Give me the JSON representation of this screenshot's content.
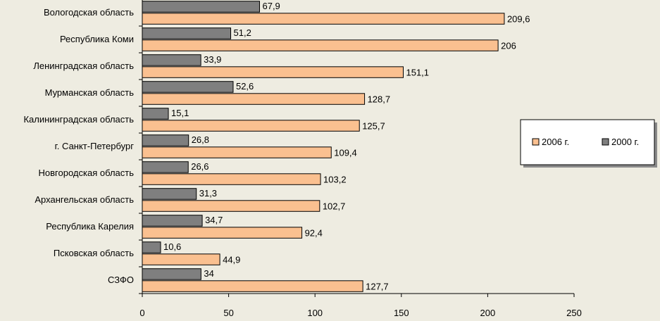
{
  "chart_data": {
    "type": "bar",
    "orientation": "horizontal",
    "categories": [
      "Вологодская область",
      "Республика Коми",
      "Ленинградская область",
      "Мурманская область",
      "Калининградская область",
      "г. Санкт-Петербург",
      "Новгородская область",
      "Архангельская область",
      "Республика Карелия",
      "Псковская область",
      "СЗФО"
    ],
    "series": [
      {
        "name": "2000 г.",
        "color": "#7f7f7f",
        "values": [
          67.9,
          51.2,
          33.9,
          52.6,
          15.1,
          26.8,
          26.6,
          31.3,
          34.7,
          10.6,
          34
        ],
        "value_labels": [
          "67,9",
          "51,2",
          "33,9",
          "52,6",
          "15,1",
          "26,8",
          "26,6",
          "31,3",
          "34,7",
          "10,6",
          "34"
        ]
      },
      {
        "name": "2006 г.",
        "color": "#fac090",
        "values": [
          209.6,
          206,
          151.1,
          128.7,
          125.7,
          109.4,
          103.2,
          102.7,
          92.4,
          44.9,
          127.7
        ],
        "value_labels": [
          "209,6",
          "206",
          "151,1",
          "128,7",
          "125,7",
          "109,4",
          "103,2",
          "102,7",
          "92,4",
          "44,9",
          "127,7"
        ]
      }
    ],
    "xlim": [
      0,
      250
    ],
    "x_ticks": [
      0,
      50,
      100,
      150,
      200,
      250
    ],
    "x_tick_labels": [
      "0",
      "50",
      "100",
      "150",
      "200",
      "250"
    ],
    "title": "",
    "xlabel": "",
    "ylabel": "",
    "grid": false,
    "legend": {
      "placement": "right",
      "entries": [
        "2006 г.",
        "2000 г."
      ]
    }
  }
}
